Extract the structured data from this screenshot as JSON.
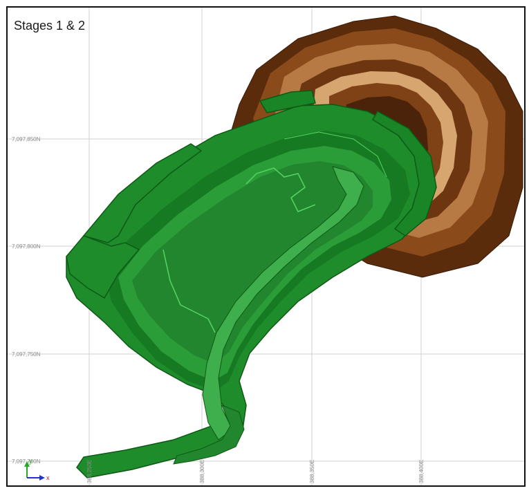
{
  "view": {
    "title": "Stages 1 & 2",
    "northing_labels": [
      "7,097,850N",
      "7,097,800N",
      "7,097,750N",
      "7,097,700N"
    ],
    "easting_labels": [
      "388,250E",
      "388,300E",
      "388,350E",
      "388,400E"
    ],
    "axis_triad": {
      "x_label": "x",
      "y_label": "y"
    },
    "colors": {
      "pit_brown_dark": "#3f1f08",
      "pit_brown_mid": "#7a3f14",
      "pit_brown_light": "#c8925a",
      "stage_green_dark": "#0f6a1a",
      "stage_green": "#1f8c2c",
      "stage_green_light": "#4cc25a",
      "grid_line": "#cccccc"
    }
  }
}
